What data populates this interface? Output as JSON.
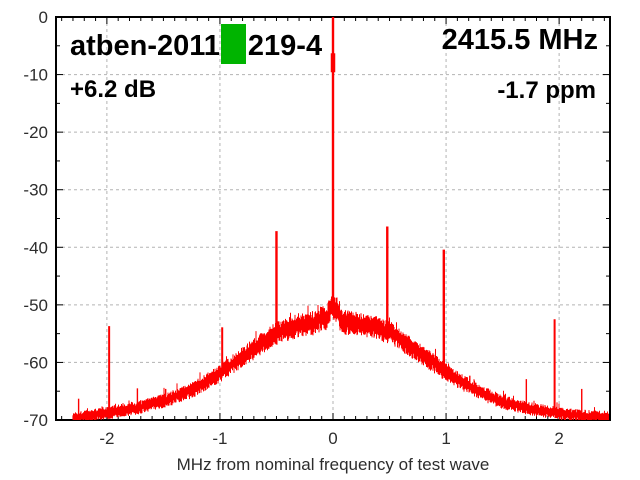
{
  "header": {
    "title_left": "atben-2011",
    "title_right": "219-4",
    "marker_color": "#00b400",
    "center_frequency": "2415.5 MHz",
    "power_offset": "+6.2 dB",
    "frequency_error": "-1.7 ppm"
  },
  "chart_data": {
    "type": "line",
    "title": "atben-2011 219-4",
    "subtitle_right": "2415.5 MHz",
    "annotations": [
      "+6.2 dB",
      "-1.7 ppm"
    ],
    "xlabel": "MHz from nominal frequency of test wave",
    "ylabel": "",
    "xlim": [
      -2.45,
      2.45
    ],
    "ylim": [
      -70,
      0
    ],
    "x_ticks": [
      -2,
      -1,
      0,
      1,
      2
    ],
    "y_ticks": [
      0,
      -10,
      -20,
      -30,
      -40,
      -50,
      -60,
      -70
    ],
    "x_minor_step": 0.1,
    "y_minor_step": 5,
    "grid": "dashed-on-major",
    "legend": "none",
    "trace_color": "#fd0000",
    "grid_color": "#b3b3b3",
    "axis_color": "#000000",
    "data_x_range": [
      -2.3,
      2.44
    ],
    "carrier": {
      "x_mhz": 0.0,
      "peak_db": 0
    },
    "spurs": [
      {
        "x_mhz": -2.25,
        "peak_db": -66.3
      },
      {
        "x_mhz": -1.98,
        "peak_db": -53.7
      },
      {
        "x_mhz": -1.73,
        "peak_db": -64.5
      },
      {
        "x_mhz": -1.48,
        "peak_db": -64.6
      },
      {
        "x_mhz": -1.24,
        "peak_db": -64.4
      },
      {
        "x_mhz": -0.98,
        "peak_db": -53.9
      },
      {
        "x_mhz": -0.5,
        "peak_db": -37.2
      },
      {
        "x_mhz": 0.48,
        "peak_db": -36.4
      },
      {
        "x_mhz": 0.98,
        "peak_db": -40.4
      },
      {
        "x_mhz": 1.21,
        "peak_db": -62.3
      },
      {
        "x_mhz": 1.46,
        "peak_db": -66.2
      },
      {
        "x_mhz": 1.71,
        "peak_db": -62.9
      },
      {
        "x_mhz": 1.96,
        "peak_db": -52.5
      },
      {
        "x_mhz": 2.2,
        "peak_db": -64.6
      }
    ],
    "noise_envelope_db": [
      [
        -2.3,
        -69.6
      ],
      [
        -2.0,
        -68.7
      ],
      [
        -1.75,
        -67.9
      ],
      [
        -1.5,
        -66.6
      ],
      [
        -1.25,
        -64.8
      ],
      [
        -1.0,
        -61.8
      ],
      [
        -0.75,
        -58.2
      ],
      [
        -0.5,
        -54.8
      ],
      [
        -0.3,
        -53.4
      ],
      [
        -0.15,
        -53.1
      ],
      [
        -0.09,
        -51.8
      ],
      [
        -0.06,
        -53.0
      ],
      [
        -0.04,
        -51.0
      ],
      [
        0.0,
        -50.3
      ],
      [
        0.04,
        -50.8
      ],
      [
        0.07,
        -52.8
      ],
      [
        0.15,
        -53.0
      ],
      [
        0.3,
        -53.4
      ],
      [
        0.5,
        -54.6
      ],
      [
        0.75,
        -58.0
      ],
      [
        1.0,
        -61.6
      ],
      [
        1.25,
        -64.6
      ],
      [
        1.5,
        -66.8
      ],
      [
        1.75,
        -68.0
      ],
      [
        2.0,
        -68.8
      ],
      [
        2.2,
        -69.2
      ],
      [
        2.44,
        -69.5
      ]
    ],
    "noise_band_halfwidth_db": {
      "floor": 0.8,
      "peak": 1.7
    }
  }
}
